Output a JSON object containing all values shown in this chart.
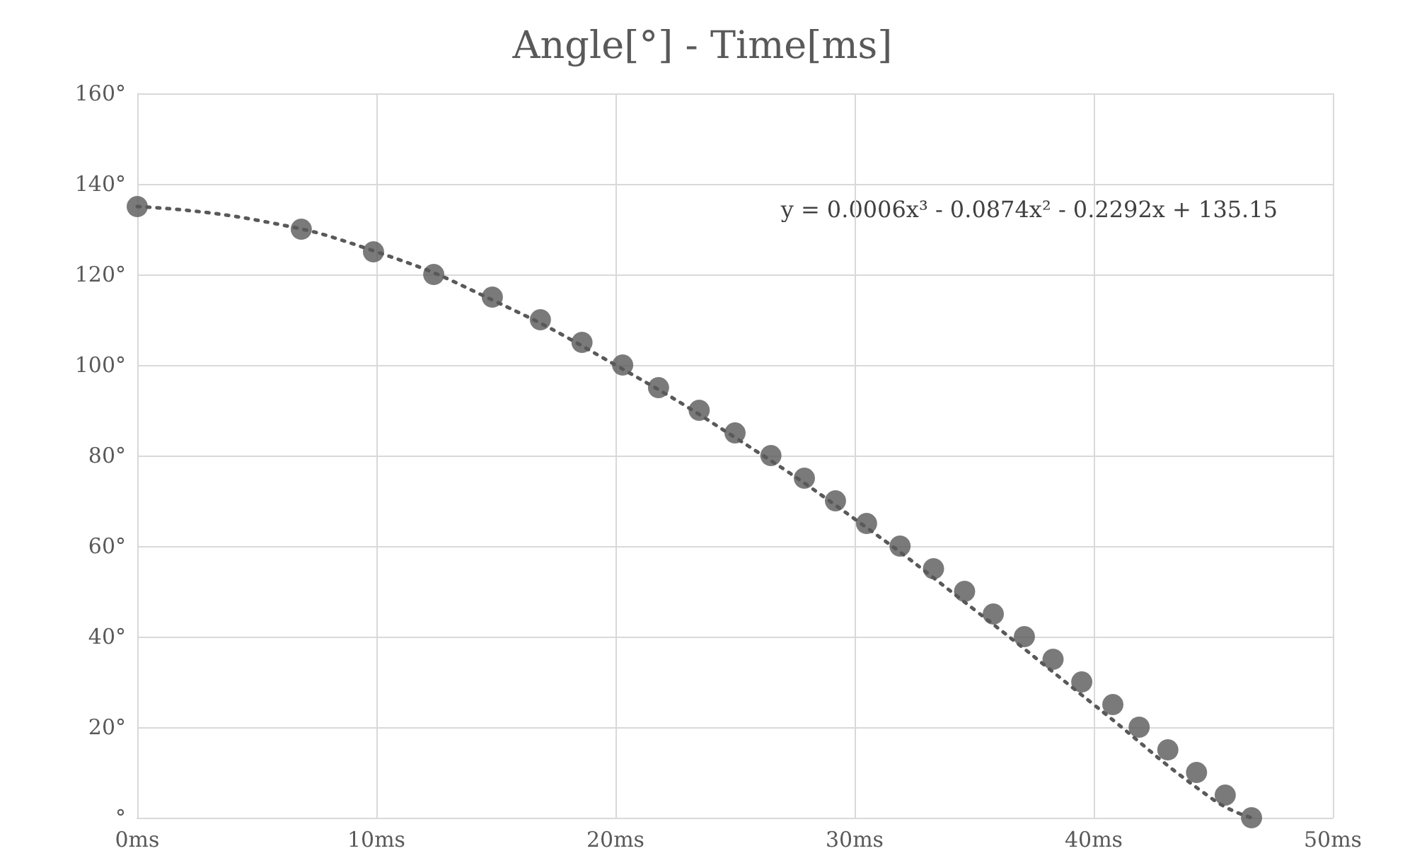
{
  "chart_data": {
    "type": "scatter",
    "title": "Angle[°] - Time[ms]",
    "annotations": [
      "y = 0.0006x³ - 0.0874x² - 0.2292x + 135.15"
    ],
    "x": [
      0,
      6.86,
      9.88,
      12.4,
      14.85,
      16.86,
      18.6,
      20.3,
      21.8,
      23.5,
      25.0,
      26.5,
      27.9,
      29.2,
      30.5,
      31.9,
      33.3,
      34.6,
      35.8,
      37.1,
      38.3,
      39.5,
      40.8,
      41.9,
      43.1,
      44.3,
      45.5,
      46.6
    ],
    "series": [
      {
        "color": "#595959",
        "marker": "circle",
        "values": [
          135,
          130,
          125,
          120,
          115,
          110,
          105,
          100,
          95,
          90,
          85,
          80,
          75,
          70,
          65,
          60,
          55,
          50,
          45,
          40,
          35,
          30,
          25,
          20,
          15,
          10,
          5,
          0
        ]
      },
      {
        "type": "line",
        "color": "#595959",
        "line_style": "dotted",
        "marker": "none",
        "x": [
          0,
          5,
          10,
          15,
          20,
          25,
          30,
          35,
          40,
          45,
          46.6
        ],
        "values": [
          135,
          132,
          125,
          114,
          100,
          84,
          66,
          46,
          25,
          4,
          0
        ]
      }
    ],
    "xlim": [
      0,
      50
    ],
    "xticks": [
      {
        "value": 0,
        "label": "0ms"
      },
      {
        "value": 10,
        "label": "10ms"
      },
      {
        "value": 20,
        "label": "20ms"
      },
      {
        "value": 30,
        "label": "30ms"
      },
      {
        "value": 40,
        "label": "40ms"
      },
      {
        "value": 50,
        "label": "50ms"
      }
    ],
    "ylim": [
      0,
      160
    ],
    "yticks": [
      {
        "value": 0,
        "label": "°"
      },
      {
        "value": 20,
        "label": "20°"
      },
      {
        "value": 40,
        "label": "40°"
      },
      {
        "value": 60,
        "label": "60°"
      },
      {
        "value": 80,
        "label": "80°"
      },
      {
        "value": 100,
        "label": "100°"
      },
      {
        "value": 120,
        "label": "120°"
      },
      {
        "value": 140,
        "label": "140°"
      },
      {
        "value": 160,
        "label": "160°"
      }
    ],
    "grid": true
  }
}
